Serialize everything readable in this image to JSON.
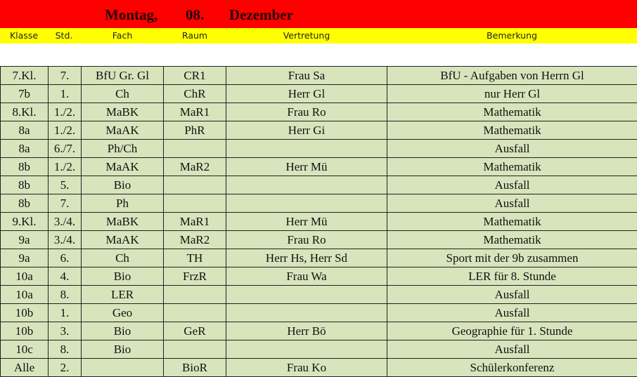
{
  "title": {
    "day": "Montag,",
    "date": "08.",
    "month": "Dezember"
  },
  "columns": [
    "Klasse",
    "Std.",
    "Fach",
    "Raum",
    "Vertretung",
    "Bemerkung"
  ],
  "colors": {
    "title_bg": "#ff0000",
    "header_bg": "#ffff00",
    "cell_bg": "#d8e4bc"
  },
  "rows": [
    [
      "7.Kl.",
      "7.",
      "BfU Gr. Gl",
      "CR1",
      "Frau Sa",
      "BfU - Aufgaben von Herrn Gl"
    ],
    [
      "7b",
      "1.",
      "Ch",
      "ChR",
      "Herr Gl",
      "nur Herr Gl"
    ],
    [
      "8.Kl.",
      "1./2.",
      "MaBK",
      "MaR1",
      "Frau Ro",
      "Mathematik"
    ],
    [
      "8a",
      "1./2.",
      "MaAK",
      "PhR",
      "Herr Gi",
      "Mathematik"
    ],
    [
      "8a",
      "6./7.",
      "Ph/Ch",
      "",
      "",
      "Ausfall"
    ],
    [
      "8b",
      "1./2.",
      "MaAK",
      "MaR2",
      "Herr Mü",
      "Mathematik"
    ],
    [
      "8b",
      "5.",
      "Bio",
      "",
      "",
      "Ausfall"
    ],
    [
      "8b",
      "7.",
      "Ph",
      "",
      "",
      "Ausfall"
    ],
    [
      "9.Kl.",
      "3./4.",
      "MaBK",
      "MaR1",
      "Herr Mü",
      "Mathematik"
    ],
    [
      "9a",
      "3./4.",
      "MaAK",
      "MaR2",
      "Frau Ro",
      "Mathematik"
    ],
    [
      "9a",
      "6.",
      "Ch",
      "TH",
      "Herr Hs, Herr Sd",
      "Sport mit der 9b zusammen"
    ],
    [
      "10a",
      "4.",
      "Bio",
      "FrzR",
      "Frau Wa",
      "LER für 8. Stunde"
    ],
    [
      "10a",
      "8.",
      "LER",
      "",
      "",
      "Ausfall"
    ],
    [
      "10b",
      "1.",
      "Geo",
      "",
      "",
      "Ausfall"
    ],
    [
      "10b",
      "3.",
      "Bio",
      "GeR",
      "Herr Bö",
      "Geographie für 1. Stunde"
    ],
    [
      "10c",
      "8.",
      "Bio",
      "",
      "",
      "Ausfall"
    ],
    [
      "Alle",
      "2.",
      "",
      "BioR",
      "Frau Ko",
      "Schülerkonferenz"
    ]
  ]
}
